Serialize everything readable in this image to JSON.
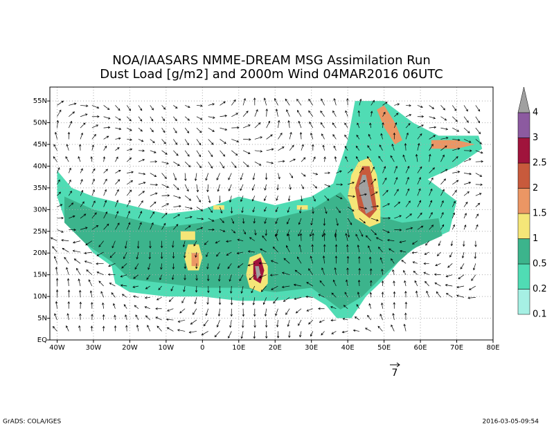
{
  "title": [
    "NOA/IAASARS NMME-DREAM MSG Assimilation Run",
    "Dust Load [g/m2] and 2000m Wind 04MAR2016 06UTC"
  ],
  "map": {
    "xlim": [
      -42,
      80
    ],
    "ylim": [
      0,
      58.2
    ],
    "lon_ticks": [
      {
        "value": -40,
        "label": "40W"
      },
      {
        "value": -30,
        "label": "30W"
      },
      {
        "value": -20,
        "label": "20W"
      },
      {
        "value": -10,
        "label": "10W"
      },
      {
        "value": 0,
        "label": "0"
      },
      {
        "value": 10,
        "label": "10E"
      },
      {
        "value": 20,
        "label": "20E"
      },
      {
        "value": 30,
        "label": "30E"
      },
      {
        "value": 40,
        "label": "40E"
      },
      {
        "value": 50,
        "label": "50E"
      },
      {
        "value": 60,
        "label": "60E"
      },
      {
        "value": 70,
        "label": "70E"
      },
      {
        "value": 80,
        "label": "80E"
      }
    ],
    "lat_ticks": [
      {
        "value": 0,
        "label": "EQ"
      },
      {
        "value": 5,
        "label": "5N"
      },
      {
        "value": 10,
        "label": "10N"
      },
      {
        "value": 15,
        "label": "15N"
      },
      {
        "value": 20,
        "label": "20N"
      },
      {
        "value": 25,
        "label": "25N"
      },
      {
        "value": 30,
        "label": "30N"
      },
      {
        "value": 35,
        "label": "35N"
      },
      {
        "value": 40,
        "label": "40N"
      },
      {
        "value": 45,
        "label": "45N"
      },
      {
        "value": 50,
        "label": "50N"
      },
      {
        "value": 55,
        "label": "55N"
      }
    ]
  },
  "colorbar": {
    "levels": [
      0.1,
      0.2,
      0.5,
      1,
      1.5,
      2,
      2.5,
      3,
      4
    ],
    "colors": [
      "#a6f0e4",
      "#50dcb4",
      "#3cb48c",
      "#f5e678",
      "#eb9664",
      "#c85a3c",
      "#a0143c",
      "#8c5aa0",
      "#a0a0a0"
    ]
  },
  "vector_reference": "7",
  "footer": {
    "left": "GrADS: COLA/IGES",
    "right": "2016-03-05-09:54"
  }
}
